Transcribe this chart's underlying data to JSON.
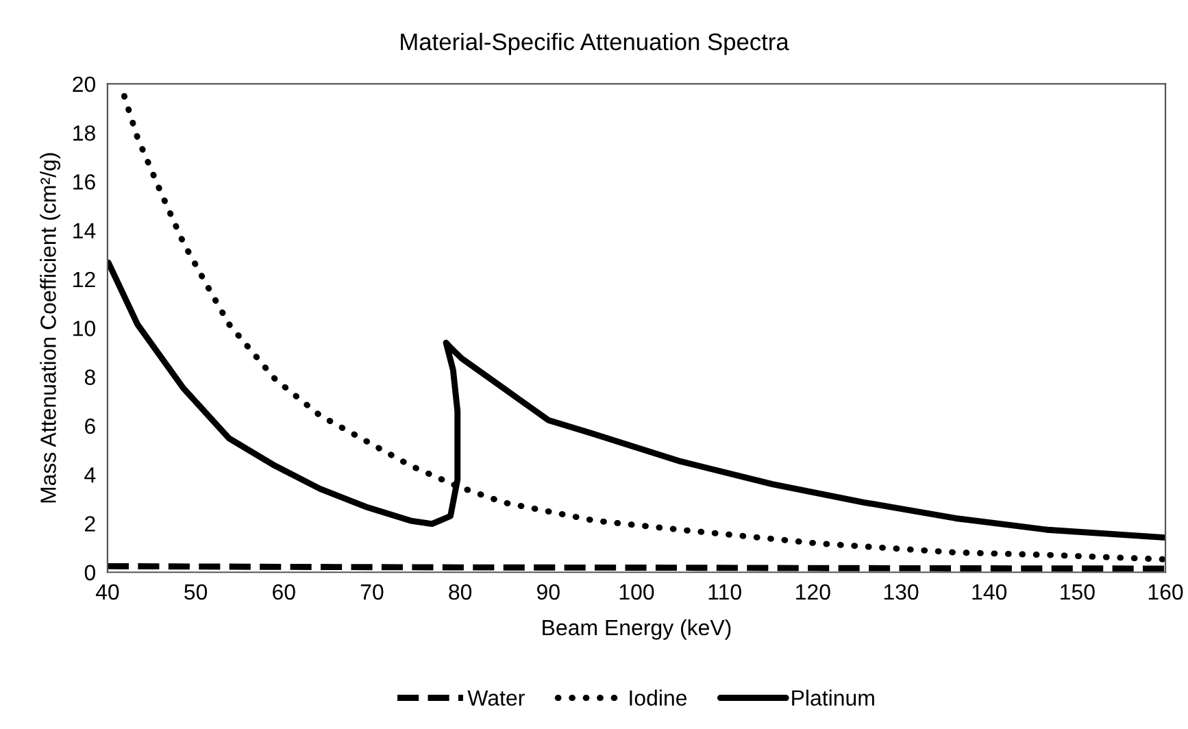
{
  "chart_data": {
    "type": "line",
    "title": "Material-Specific Attenuation Spectra",
    "xlabel": "Beam Energy (keV)",
    "ylabel": "Mass Attenuation Coefficient (cm²/g)",
    "xlim": [
      40,
      160
    ],
    "xticks": [
      40,
      50,
      60,
      70,
      80,
      90,
      100,
      110,
      120,
      130,
      140,
      150,
      160
    ],
    "ylim": [
      0,
      20
    ],
    "yticks": [
      0,
      2,
      4,
      6,
      8,
      10,
      12,
      14,
      16,
      18,
      20
    ],
    "grid": false,
    "legend": "bottom",
    "marker": "none",
    "series": [
      {
        "name": "Water",
        "color": "#000000",
        "line_style": "dashed",
        "x": [
          40,
          60,
          80,
          100,
          120,
          140,
          160
        ],
        "values": [
          0.25,
          0.22,
          0.2,
          0.19,
          0.17,
          0.16,
          0.15
        ]
      },
      {
        "name": "Iodine",
        "color": "#000000",
        "line_style": "dotted",
        "x": [
          41.9,
          43.4,
          46.0,
          48.6,
          51.2,
          53.8,
          56.4,
          59.0,
          64.1,
          69.3,
          74.4,
          79.7,
          84.9,
          95.3,
          105,
          120.6,
          136.2,
          146.6,
          160
        ],
        "values": [
          19.5,
          17.8,
          15.6,
          13.5,
          11.8,
          10.15,
          9.03,
          7.91,
          6.42,
          5.38,
          4.36,
          3.52,
          2.86,
          2.11,
          1.74,
          1.18,
          0.81,
          0.71,
          0.53
        ]
      },
      {
        "name": "Platinum",
        "color": "#000000",
        "line_style": "solid",
        "x": [
          40.1,
          43.4,
          48.6,
          53.8,
          59.0,
          64.1,
          69.3,
          74.4,
          76.8,
          78.9,
          79.7,
          79.7,
          79.2,
          78.4,
          78.9,
          80.2,
          84.9,
          90.0,
          94.8,
          105,
          115.4,
          125.8,
          136.2,
          146.6,
          160
        ],
        "values": [
          12.68,
          10.15,
          7.54,
          5.48,
          4.36,
          3.42,
          2.68,
          2.11,
          1.98,
          2.3,
          3.8,
          6.6,
          8.28,
          9.4,
          9.2,
          8.75,
          7.54,
          6.23,
          5.7,
          4.54,
          3.61,
          2.86,
          2.21,
          1.74,
          1.42
        ]
      }
    ]
  }
}
